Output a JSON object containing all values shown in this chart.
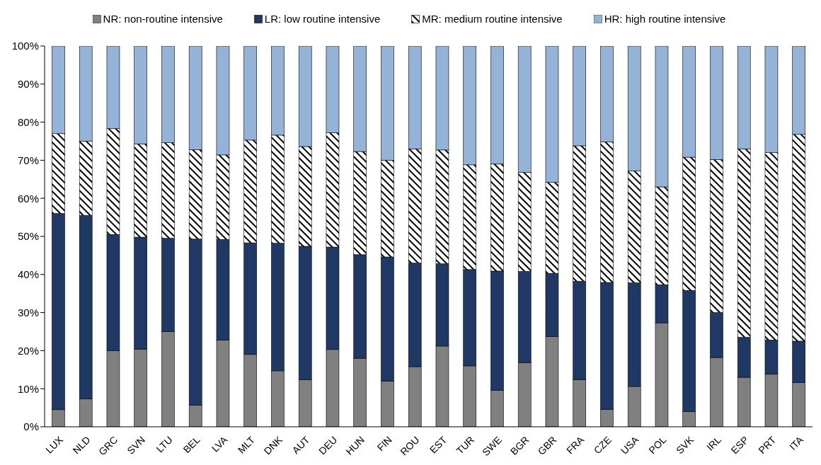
{
  "chart_data": {
    "type": "bar",
    "stacked": true,
    "legend": "top",
    "grid": false,
    "categories": [
      "LUX",
      "NLD",
      "GRC",
      "SVN",
      "LTU",
      "BEL",
      "LVA",
      "MLT",
      "DNK",
      "AUT",
      "DEU",
      "HUN",
      "FIN",
      "ROU",
      "EST",
      "TUR",
      "SWE",
      "BGR",
      "GBR",
      "FRA",
      "CZE",
      "USA",
      "POL",
      "SVK",
      "IRL",
      "ESP",
      "PRT",
      "ITA"
    ],
    "series": [
      {
        "name": "NR: non-routine intensive",
        "color": "#808080",
        "values": [
          4.5,
          7.3,
          20,
          20.4,
          25,
          5.7,
          22.8,
          19,
          14.7,
          12.4,
          20.3,
          18,
          12,
          15.8,
          21.2,
          16,
          9.6,
          16.8,
          23.7,
          12.4,
          4.6,
          10.6,
          27.3,
          4,
          18.2,
          13,
          13.8,
          11.6
        ]
      },
      {
        "name": "LR: low routine intensive",
        "color": "#1f3864",
        "values": [
          51.5,
          48.2,
          30.5,
          29.4,
          24.5,
          43.6,
          26.4,
          29.3,
          33.5,
          35,
          26.9,
          27.2,
          32.6,
          27.2,
          21.6,
          25.3,
          31.3,
          24,
          16.6,
          25.8,
          33.3,
          27.2,
          10,
          31.8,
          11.8,
          10.5,
          9,
          10.9
        ]
      },
      {
        "name": "MR: medium routine intensive",
        "color": "#ffffff",
        "values": [
          21,
          19.5,
          27.8,
          24.5,
          25.1,
          23.5,
          22.2,
          27,
          28.4,
          26.2,
          30,
          27.1,
          25.4,
          30,
          29.9,
          27.5,
          28.1,
          26,
          23.9,
          35.6,
          36.9,
          29.4,
          25.7,
          35,
          40.2,
          49.5,
          49.2,
          54.3
        ]
      },
      {
        "name": "HR: high routine intensive",
        "color": "#95b3d7",
        "values": [
          23,
          25,
          21.7,
          25.7,
          25.4,
          27.2,
          28.6,
          24.7,
          23.4,
          26.4,
          22.8,
          27.7,
          30,
          27,
          27.3,
          31.2,
          31,
          33.2,
          35.8,
          26.2,
          25.2,
          32.8,
          37,
          29.2,
          29.8,
          27,
          28,
          23.2
        ]
      }
    ],
    "ylim": [
      0,
      100
    ],
    "yticks": [
      {
        "value": 0,
        "label": "0%"
      },
      {
        "value": 10,
        "label": "10%"
      },
      {
        "value": 20,
        "label": "20%"
      },
      {
        "value": 30,
        "label": "30%"
      },
      {
        "value": 40,
        "label": "40%"
      },
      {
        "value": 50,
        "label": "50%"
      },
      {
        "value": 60,
        "label": "60%"
      },
      {
        "value": 70,
        "label": "70%"
      },
      {
        "value": 80,
        "label": "80%"
      },
      {
        "value": 90,
        "label": "90%"
      },
      {
        "value": 100,
        "label": "100%"
      }
    ]
  }
}
